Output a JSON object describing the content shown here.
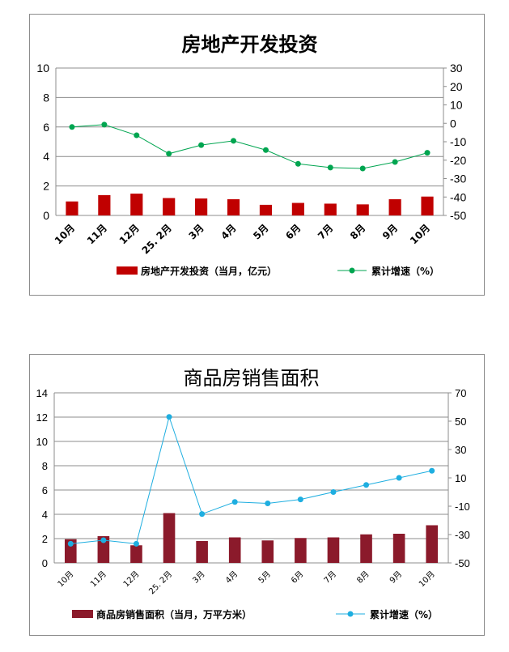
{
  "chart_data": [
    {
      "type": "bar",
      "title": "房地产开发投资",
      "categories": [
        "10月",
        "11月",
        "12月",
        "25. 2月",
        "3月",
        "4月",
        "5月",
        "6月",
        "7月",
        "8月",
        "9月",
        "10月"
      ],
      "ylim": [
        0,
        10
      ],
      "y_ticks": [
        "0",
        "2",
        "4",
        "6",
        "8",
        "10"
      ],
      "y2lim": [
        -50,
        30
      ],
      "y2_ticks": [
        "-50",
        "-40",
        "-30",
        "-20",
        "-10",
        "0",
        "10",
        "20",
        "30"
      ],
      "grid": true,
      "legend_position": "bottom",
      "series": [
        {
          "name": "房地产开发投资（当月，亿元）",
          "kind": "bar",
          "axis": "left",
          "color": "#C00000",
          "values": [
            0.95,
            1.38,
            1.48,
            1.18,
            1.15,
            1.1,
            0.72,
            0.85,
            0.8,
            0.75,
            1.1,
            1.28
          ]
        },
        {
          "name": "累计增速（%）",
          "kind": "line",
          "axis": "right",
          "color": "#00A550",
          "values": [
            -2,
            -0.7,
            -6.5,
            -16.5,
            -11.8,
            -9.5,
            -14.5,
            -22,
            -24,
            -24.5,
            -21,
            -16
          ]
        }
      ]
    },
    {
      "type": "bar",
      "title": "商品房销售面积",
      "categories": [
        "10月",
        "11月",
        "12月",
        "25. 2月",
        "3月",
        "4月",
        "5月",
        "6月",
        "7月",
        "8月",
        "9月",
        "10月"
      ],
      "ylim": [
        0,
        14
      ],
      "y_ticks": [
        "0",
        "2",
        "4",
        "6",
        "8",
        "10",
        "12",
        "14"
      ],
      "y2lim": [
        -50,
        70
      ],
      "y2_ticks": [
        "-50",
        "-30",
        "-10",
        "10",
        "30",
        "50",
        "70"
      ],
      "y2_step": 20,
      "grid": true,
      "legend_position": "bottom",
      "series": [
        {
          "name": "商品房销售面积（当月，万平方米）",
          "kind": "bar",
          "axis": "left",
          "color": "#8B1A2B",
          "values": [
            1.95,
            2.2,
            1.45,
            4.1,
            1.8,
            2.1,
            1.85,
            2.05,
            2.1,
            2.35,
            2.4,
            3.1
          ]
        },
        {
          "name": "累计增速（%）",
          "kind": "line",
          "axis": "right",
          "color": "#1EAEE0",
          "values": [
            -36.5,
            -34,
            -36.5,
            53,
            -15.5,
            -7,
            -8,
            -5.2,
            0,
            5,
            10,
            15
          ]
        }
      ]
    }
  ]
}
